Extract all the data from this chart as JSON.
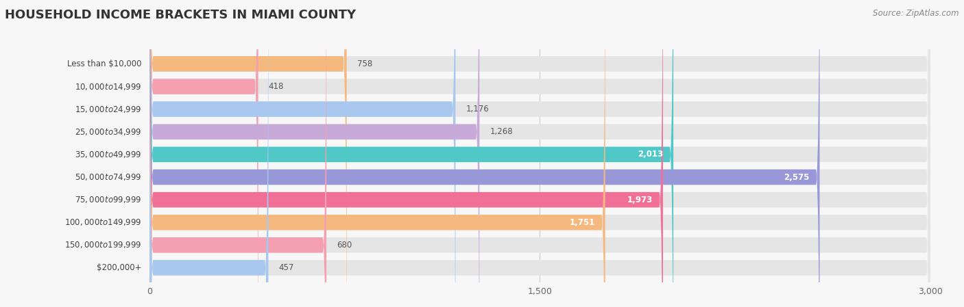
{
  "title": "HOUSEHOLD INCOME BRACKETS IN MIAMI COUNTY",
  "source": "Source: ZipAtlas.com",
  "categories": [
    "Less than $10,000",
    "$10,000 to $14,999",
    "$15,000 to $24,999",
    "$25,000 to $34,999",
    "$35,000 to $49,999",
    "$50,000 to $74,999",
    "$75,000 to $99,999",
    "$100,000 to $149,999",
    "$150,000 to $199,999",
    "$200,000+"
  ],
  "values": [
    758,
    418,
    1176,
    1268,
    2013,
    2575,
    1973,
    1751,
    680,
    457
  ],
  "bar_colors": [
    "#f5b97f",
    "#f4a0b0",
    "#a8c8f0",
    "#c8aad8",
    "#50c8c8",
    "#9898d8",
    "#f07098",
    "#f5b97f",
    "#f4a0b0",
    "#a8c8f0"
  ],
  "xlim": [
    0,
    3000
  ],
  "xticks": [
    0,
    1500,
    3000
  ],
  "background_color": "#f7f7f7",
  "bar_background_color": "#e5e5e5",
  "title_fontsize": 13,
  "label_fontsize": 8.5,
  "value_fontsize": 8.5,
  "source_fontsize": 8.5,
  "value_threshold": 1500
}
